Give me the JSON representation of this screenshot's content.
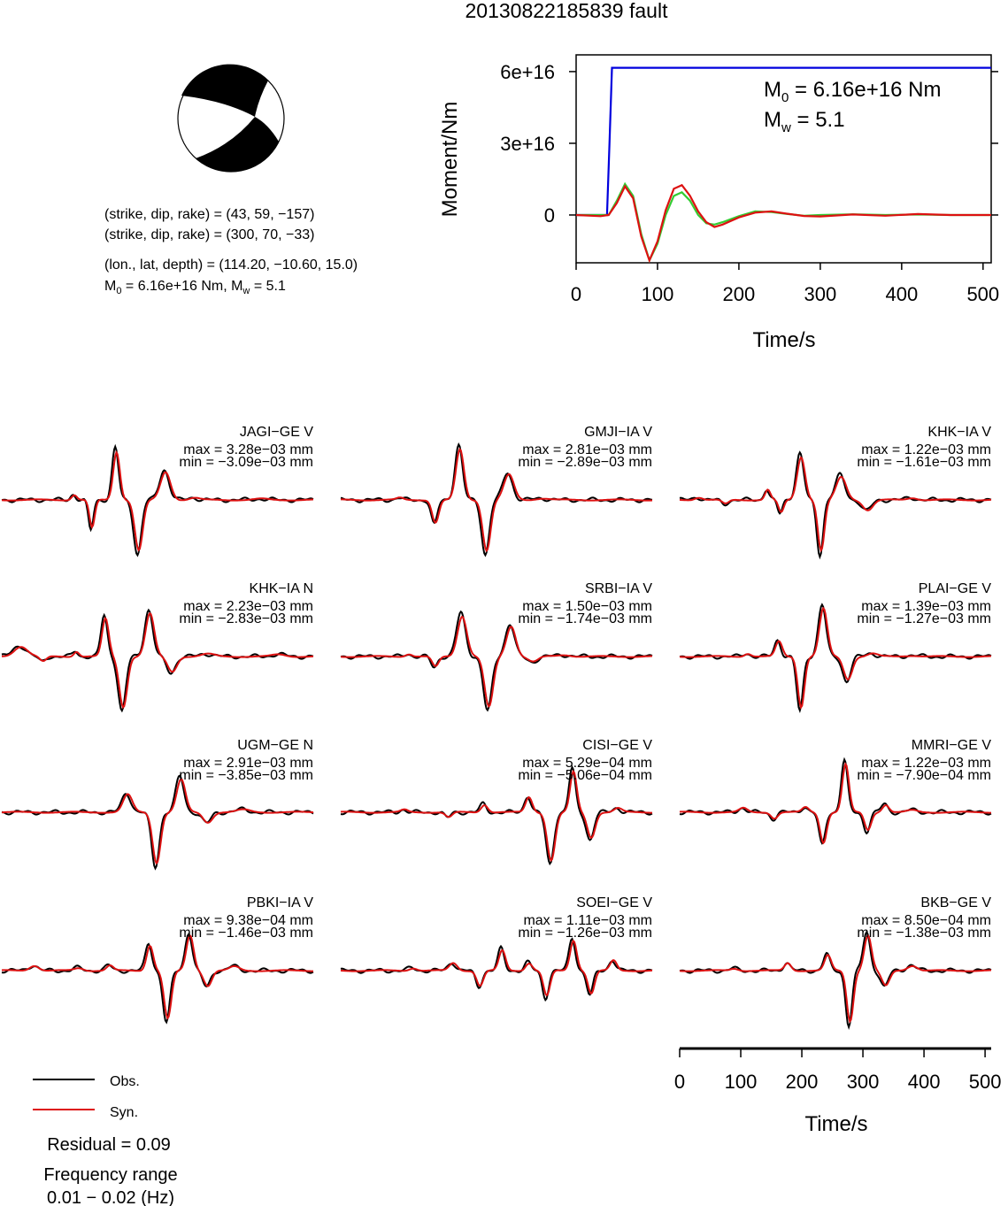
{
  "title": "20130822185839 fault",
  "colors": {
    "obs": "#000000",
    "syn": "#dd1111",
    "moment": "#0000dd",
    "moment_green": "#33cc33",
    "moment_red": "#dd1111"
  },
  "beachball": {
    "nodal_1": "(strike, dip, rake) = (43, 59, −157)",
    "nodal_2": "(strike, dip, rake) = (300, 70, −33)",
    "location": "(lon., lat, depth) = (114.20, −10.60, 15.0)",
    "m0_prefix": "M",
    "m0_sub": "0",
    "m0_rest": " = 6.16e+16 Nm, M",
    "mw_sub": "w",
    "mw_rest": " = 5.1"
  },
  "chart_data": [
    {
      "type": "line",
      "name": "moment-rate-function",
      "xlabel": "Time/s",
      "ylabel": "Moment/Nm",
      "xlim": [
        0,
        510
      ],
      "ylim": [
        -20000000000000000,
        67000000000000000
      ],
      "xticks": [
        0,
        100,
        200,
        300,
        400,
        500
      ],
      "xtick_labels": [
        "0",
        "100",
        "200",
        "300",
        "400",
        "500"
      ],
      "yticks": [
        0,
        30000000000000000,
        60000000000000000
      ],
      "ytick_labels": [
        "0",
        "3e+16",
        "6e+16"
      ],
      "annotation": {
        "m0_label": "M",
        "m0_sub": "0",
        "m0_value": " = 6.16e+16 Nm",
        "mw_label": "M",
        "mw_sub": "w",
        "mw_value": " = 5.1"
      },
      "series": [
        {
          "color": "#0000dd",
          "x": [
            0,
            38,
            41,
            44,
            510
          ],
          "y": [
            0,
            0,
            30000000000000000,
            61600000000000000,
            61600000000000000
          ]
        },
        {
          "color": "#33cc33",
          "x": [
            0,
            40,
            50,
            60,
            70,
            80,
            90,
            100,
            110,
            120,
            130,
            140,
            150,
            160,
            170,
            180,
            200,
            220,
            240,
            260,
            280,
            300,
            340,
            380,
            420,
            460,
            510
          ],
          "y": [
            0,
            0,
            6000000000000000,
            13000000000000000,
            8000000000000000,
            -8000000000000000,
            -19000000000000000,
            -12000000000000000,
            0,
            8000000000000000,
            9500000000000000,
            6000000000000000,
            0,
            -3500000000000000,
            -4000000000000000,
            -3000000000000000,
            -500000000000000,
            1500000000000000,
            1200000000000000,
            400000000000000,
            -300000000000000,
            0,
            300000000000000,
            0,
            200000000000000,
            0,
            0
          ]
        },
        {
          "color": "#dd1111",
          "x": [
            0,
            30,
            40,
            50,
            60,
            70,
            80,
            90,
            100,
            110,
            120,
            130,
            140,
            150,
            160,
            170,
            180,
            200,
            220,
            240,
            260,
            280,
            300,
            340,
            380,
            420,
            460,
            510
          ],
          "y": [
            0,
            -500000000000000,
            0,
            5000000000000000,
            12000000000000000,
            7000000000000000,
            -9000000000000000,
            -19000000000000000,
            -11000000000000000,
            2000000000000000,
            11000000000000000,
            12500000000000000,
            8000000000000000,
            1500000000000000,
            -3000000000000000,
            -5000000000000000,
            -4000000000000000,
            -1000000000000000,
            1000000000000000,
            1500000000000000,
            500000000000000,
            -400000000000000,
            -600000000000000,
            200000000000000,
            -300000000000000,
            400000000000000,
            0,
            0
          ]
        }
      ]
    },
    {
      "type": "line",
      "name": "waveform-comparison",
      "xlabel": "Time/s",
      "xlim": [
        0,
        510
      ],
      "xticks": [
        0,
        100,
        200,
        300,
        400,
        500
      ],
      "xtick_labels": [
        "0",
        "100",
        "200",
        "300",
        "400",
        "500"
      ],
      "legend": {
        "position": "bottom-left",
        "obs": "Obs.",
        "syn": "Syn."
      },
      "residual": "Residual = 0.09",
      "freq_title": "Frequency range",
      "freq_value": "0.01 − 0.02 (Hz)",
      "stations": [
        {
          "label": "JAGI−GE V",
          "max": "max = 3.28e−03 mm",
          "min": "min = −3.09e−03 mm",
          "pulses": [
            [
              160,
              0.1,
              8
            ],
            [
              200,
              -0.55,
              8
            ],
            [
              255,
              0.95,
              10
            ],
            [
              305,
              -1.0,
              12
            ],
            [
              365,
              0.55,
              15
            ],
            [
              430,
              0.04,
              15
            ],
            [
              580,
              0.02,
              20
            ]
          ]
        },
        {
          "label": "GMJI−IA V",
          "max": "max = 2.81e−03 mm",
          "min": "min = −2.89e−03 mm",
          "pulses": [
            [
              130,
              0.04,
              10
            ],
            [
              210,
              -0.45,
              10
            ],
            [
              265,
              1.0,
              12
            ],
            [
              325,
              -1.0,
              12
            ],
            [
              375,
              0.5,
              15
            ],
            [
              450,
              0.03,
              20
            ]
          ]
        },
        {
          "label": "KHK−IA V",
          "max": "max = 1.22e−03 mm",
          "min": "min = −1.61e−03 mm",
          "pulses": [
            [
              40,
              0.05,
              12
            ],
            [
              100,
              -0.08,
              10
            ],
            [
              195,
              0.2,
              8
            ],
            [
              225,
              -0.25,
              8
            ],
            [
              270,
              0.85,
              12
            ],
            [
              315,
              -1.0,
              10
            ],
            [
              360,
              0.45,
              15
            ],
            [
              420,
              -0.2,
              15
            ],
            [
              520,
              0.04,
              15
            ]
          ]
        },
        {
          "label": "KHK−IA N",
          "max": "max = 2.23e−03 mm",
          "min": "min = −2.83e−03 mm",
          "pulses": [
            [
              40,
              0.2,
              20
            ],
            [
              90,
              -0.1,
              10
            ],
            [
              165,
              0.1,
              8
            ],
            [
              230,
              0.75,
              10
            ],
            [
              270,
              -1.0,
              12
            ],
            [
              330,
              0.85,
              13
            ],
            [
              380,
              -0.3,
              14
            ],
            [
              460,
              0.05,
              20
            ],
            [
              620,
              0.04,
              20
            ]
          ]
        },
        {
          "label": "SRBI−IA V",
          "max": "max = 1.50e−03 mm",
          "min": "min = −1.74e−03 mm",
          "pulses": [
            [
              150,
              0.05,
              10
            ],
            [
              210,
              -0.2,
              10
            ],
            [
              270,
              0.8,
              14
            ],
            [
              330,
              -1.0,
              13
            ],
            [
              380,
              0.6,
              14
            ],
            [
              430,
              -0.1,
              15
            ],
            [
              500,
              0.03,
              20
            ]
          ]
        },
        {
          "label": "PLAI−GE V",
          "max": "max = 1.39e−03 mm",
          "min": "min = −1.27e−03 mm",
          "pulses": [
            [
              150,
              0.06,
              10
            ],
            [
              220,
              0.3,
              10
            ],
            [
              270,
              -1.0,
              10
            ],
            [
              320,
              0.95,
              12
            ],
            [
              375,
              -0.45,
              13
            ],
            [
              430,
              0.06,
              15
            ],
            [
              520,
              0.02,
              20
            ]
          ]
        },
        {
          "label": "UGM−GE N",
          "max": "max = 2.91e−03 mm",
          "min": "min = −3.85e−03 mm",
          "pulses": [
            [
              280,
              0.35,
              14
            ],
            [
              345,
              -1.0,
              12
            ],
            [
              400,
              0.65,
              13
            ],
            [
              460,
              -0.2,
              14
            ],
            [
              540,
              0.05,
              20
            ]
          ]
        },
        {
          "label": "CISI−GE V",
          "max": "max = 5.29e−04 mm",
          "min": "min = −5.06e−04 mm",
          "pulses": [
            [
              140,
              0.05,
              10
            ],
            [
              240,
              -0.1,
              10
            ],
            [
              320,
              0.15,
              10
            ],
            [
              420,
              0.3,
              10
            ],
            [
              470,
              -0.95,
              12
            ],
            [
              520,
              0.8,
              10
            ],
            [
              560,
              -0.5,
              12
            ],
            [
              620,
              0.08,
              12
            ]
          ]
        },
        {
          "label": "MMRI−GE V",
          "max": "max = 1.22e−03 mm",
          "min": "min = −7.90e−04 mm",
          "pulses": [
            [
              140,
              0.08,
              12
            ],
            [
              210,
              -0.12,
              10
            ],
            [
              280,
              0.1,
              10
            ],
            [
              320,
              -0.6,
              10
            ],
            [
              370,
              0.95,
              10
            ],
            [
              420,
              -0.35,
              10
            ],
            [
              460,
              0.15,
              10
            ],
            [
              520,
              0.04,
              15
            ]
          ]
        },
        {
          "label": "PBKI−IA V",
          "max": "max = 9.38e−04 mm",
          "min": "min = −1.46e−03 mm",
          "pulses": [
            [
              70,
              0.1,
              14
            ],
            [
              170,
              0.05,
              14
            ],
            [
              240,
              0.1,
              10
            ],
            [
              330,
              0.5,
              10
            ],
            [
              370,
              -0.95,
              11
            ],
            [
              420,
              0.7,
              11
            ],
            [
              460,
              -0.3,
              12
            ],
            [
              520,
              0.08,
              15
            ]
          ]
        },
        {
          "label": "SOEI−GE V",
          "max": "max = 1.11e−03 mm",
          "min": "min = −1.26e−03 mm",
          "pulses": [
            [
              160,
              0.05,
              12
            ],
            [
              250,
              0.15,
              12
            ],
            [
              310,
              -0.3,
              10
            ],
            [
              360,
              0.4,
              10
            ],
            [
              420,
              0.15,
              10
            ],
            [
              460,
              -0.5,
              10
            ],
            [
              520,
              0.6,
              10
            ],
            [
              560,
              -0.45,
              10
            ],
            [
              610,
              0.2,
              10
            ]
          ]
        },
        {
          "label": "BKB−GE V",
          "max": "max = 8.50e−04 mm",
          "min": "min = −1.38e−03 mm",
          "pulses": [
            [
              120,
              0.04,
              12
            ],
            [
              240,
              0.15,
              10
            ],
            [
              330,
              0.3,
              10
            ],
            [
              380,
              -1.0,
              10
            ],
            [
              420,
              0.7,
              11
            ],
            [
              460,
              -0.3,
              12
            ],
            [
              520,
              0.1,
              15
            ]
          ]
        }
      ]
    }
  ]
}
